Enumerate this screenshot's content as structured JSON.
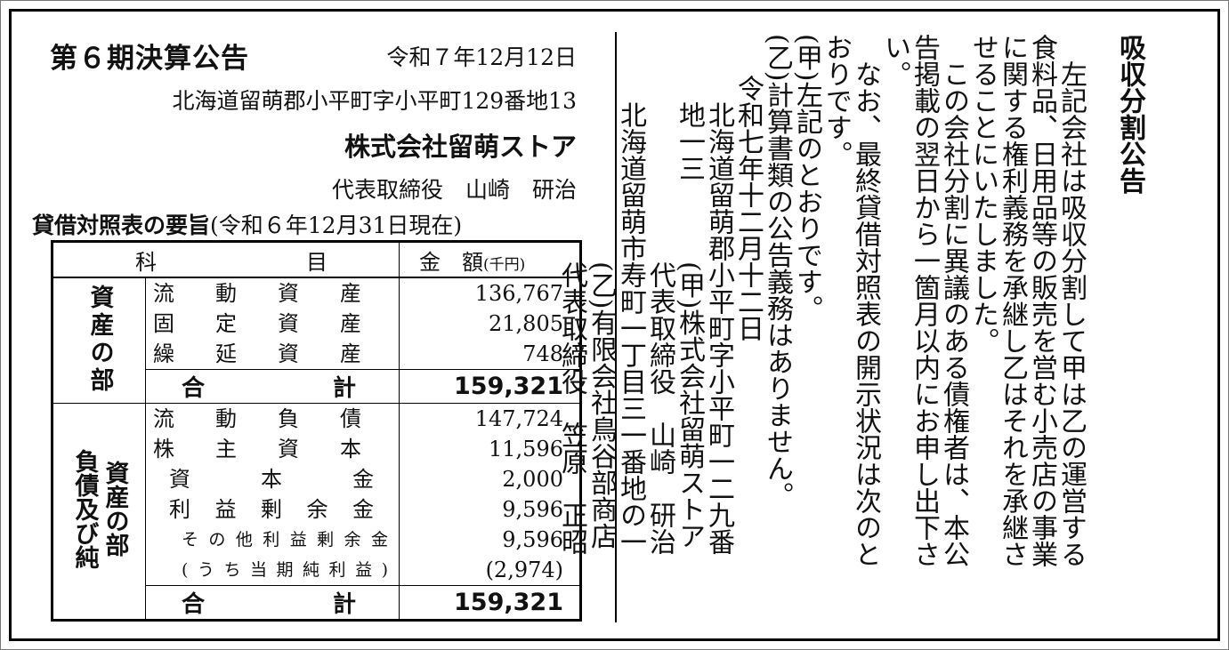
{
  "notice": {
    "title": "第６期決算公告",
    "date": "令和７年12月12日",
    "address": "北海道留萌郡小平町字小平町129番地13",
    "company": "株式会社留萌ストア",
    "representative": "代表取締役　山崎　研治",
    "balance_sheet_heading_bold": "貸借対照表の要旨",
    "balance_sheet_heading_rest": "(令和６年12月31日現在)"
  },
  "table": {
    "header_item_1": "科",
    "header_item_2": "目",
    "header_amount": "金　額",
    "header_unit": "(千円)",
    "assets": {
      "section_label": "資産の部",
      "rows": [
        {
          "label": "流動資産",
          "value": "136,767",
          "level": 0
        },
        {
          "label": "固定資産",
          "value": "21,805",
          "level": 0
        },
        {
          "label": "繰延資産",
          "value": "748",
          "level": 0
        }
      ],
      "total_label": "合計",
      "total_value": "159,321"
    },
    "liabilities": {
      "section_label": "負債及び純資産の部",
      "rows": [
        {
          "label": "流動負債",
          "value": "147,724",
          "level": 0
        },
        {
          "label": "株主資本",
          "value": "11,596",
          "level": 0
        },
        {
          "label": "資本金",
          "value": "2,000",
          "level": 1
        },
        {
          "label": "利益剰余金",
          "value": "9,596",
          "level": 1
        },
        {
          "label": "その他利益剰余金",
          "value": "9,596",
          "level": 2
        },
        {
          "label": "(うち当期純利益)",
          "value": "(2,974)",
          "level": 2
        }
      ],
      "total_label": "合計",
      "total_value": "159,321"
    }
  },
  "split_notice": {
    "title": "吸収分割公告",
    "columns": [
      "　左記会社は吸収分割して甲は乙の運営する",
      "食料品、日用品等の販売を営む小売店の事業",
      "に関する権利義務を承継し乙はそれを承継さ",
      "せることにいたしました。",
      "　この会社分割に異議のある債権者は、本公",
      "告掲載の翌日から一箇月以内にお申し出下さ",
      "い。",
      "　なお、最終貸借対照表の開示状況は次のと",
      "おりです。",
      "(甲)左記のとおりです。",
      "(乙)計算書類の公告義務はありません。",
      "　令和七年十二月十二日",
      "　　北海道留萌郡小平町字小平町一二九番",
      "　　地一三　　　(甲)株式会社留萌ストア",
      "　　　　　　　　代表取締役　山崎　研治",
      "　　北海道留萌市寿町一丁目三一番地の一",
      "　　　　　　　　(乙)有限会社鳥谷部商店",
      "　　　　　　　　代表取締役　笠原　正昭"
    ]
  }
}
